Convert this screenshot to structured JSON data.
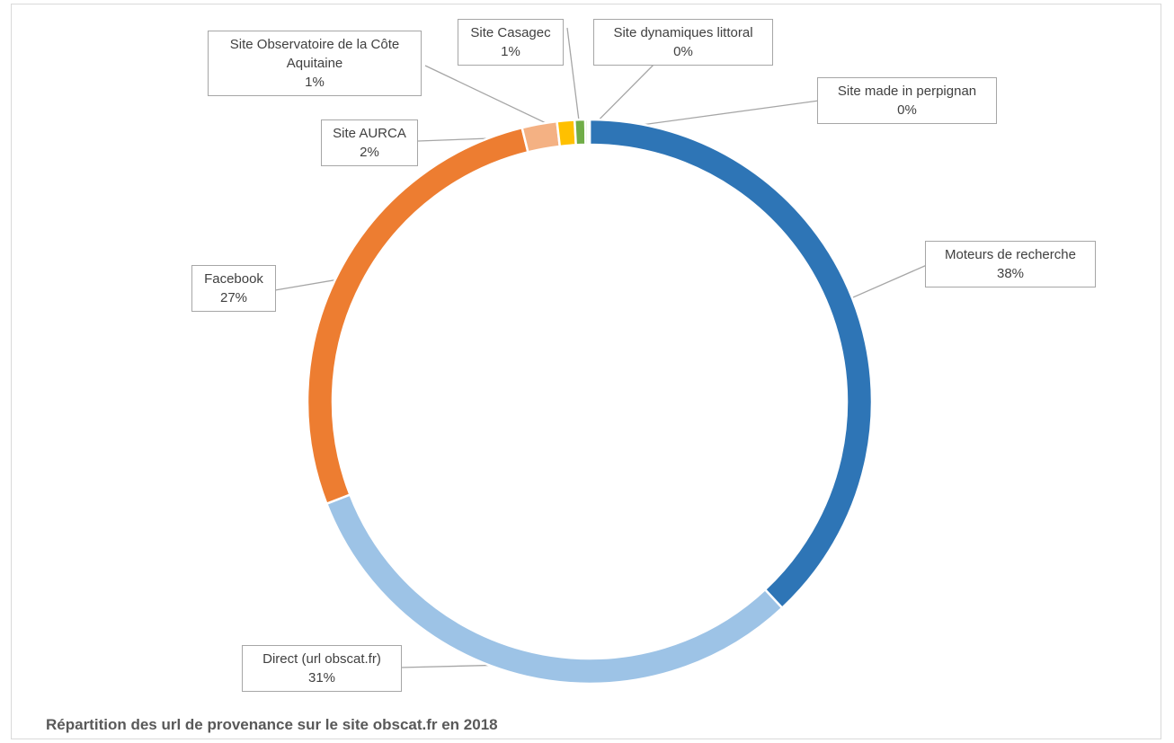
{
  "chart_data": {
    "type": "pie",
    "title": "Répartition des url de provenance sur le site obscat.fr en 2018",
    "slices": [
      {
        "name": "Moteurs de recherche",
        "value": 38,
        "label": "38%",
        "color": "#2e75b6"
      },
      {
        "name": "Direct (url obscat.fr)",
        "value": 31,
        "label": "31%",
        "color": "#9dc3e6"
      },
      {
        "name": "Facebook",
        "value": 27,
        "label": "27%",
        "color": "#ed7d31"
      },
      {
        "name": "Site AURCA",
        "value": 2,
        "label": "2%",
        "color": "#f4b183"
      },
      {
        "name": "Site Observatoire de la Côte Aquitaine",
        "value": 1,
        "label": "1%",
        "color": "#ffc000"
      },
      {
        "name": "Site Casagec",
        "value": 0.6,
        "label": "1%",
        "color": "#70ad47"
      },
      {
        "name": "Site dynamiques littoral",
        "value": 0.15,
        "label": "0%",
        "color": "#c5e0b4"
      },
      {
        "name": "Site made in perpignan",
        "value": 0.1,
        "label": "0%",
        "color": "#d6dce5"
      }
    ]
  }
}
